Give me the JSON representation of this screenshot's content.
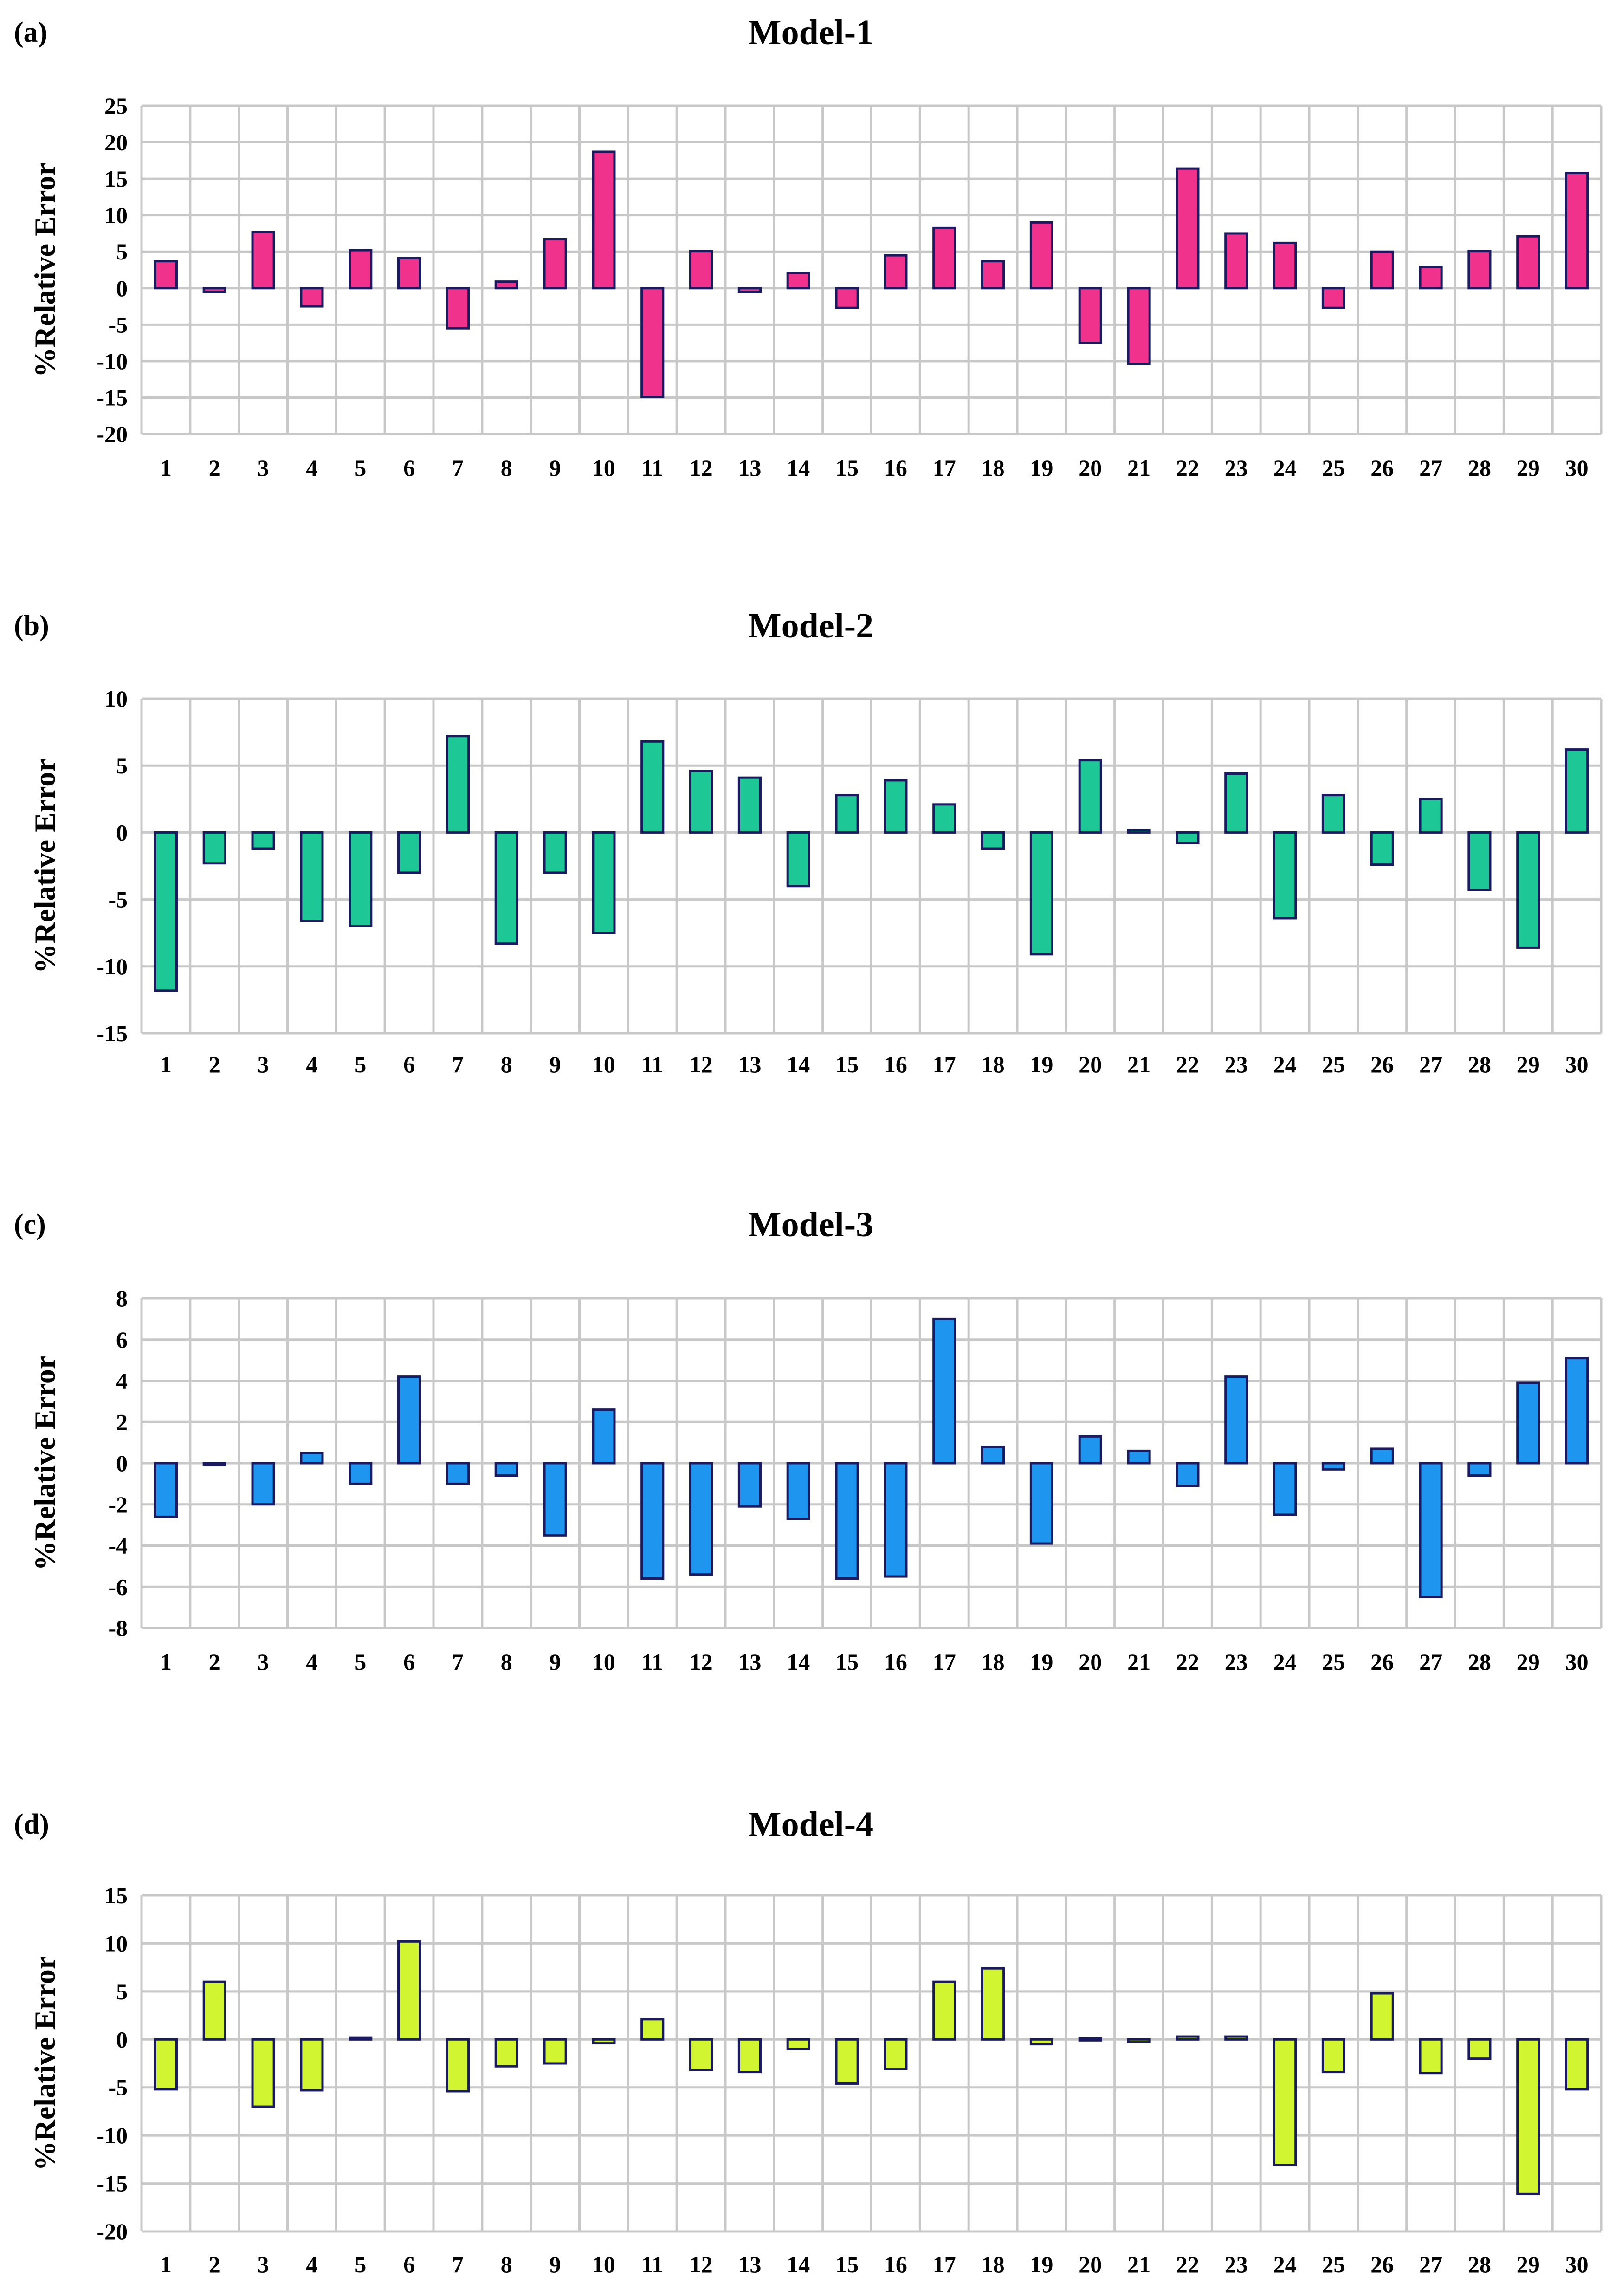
{
  "colors": {
    "grid": "#c8c8c8",
    "bar_stroke": "#1a1a5e",
    "text": "#000000",
    "background": "#ffffff"
  },
  "chart_data": [
    {
      "type": "bar",
      "panel_label": "(a)",
      "title": "Model-1",
      "xlabel": "",
      "ylabel": "%Relative Error",
      "ylim": [
        -20,
        25
      ],
      "yticks": [
        25,
        20,
        15,
        10,
        5,
        0,
        -5,
        -10,
        -15,
        -20
      ],
      "grid": true,
      "color": "#f0328c",
      "categories": [
        "1",
        "2",
        "3",
        "4",
        "5",
        "6",
        "7",
        "8",
        "9",
        "10",
        "11",
        "12",
        "13",
        "14",
        "15",
        "16",
        "17",
        "18",
        "19",
        "20",
        "21",
        "22",
        "23",
        "24",
        "25",
        "26",
        "27",
        "28",
        "29",
        "30"
      ],
      "values": [
        3.7,
        -0.5,
        7.7,
        -2.5,
        5.2,
        4.1,
        -5.5,
        0.9,
        6.7,
        18.7,
        -14.9,
        5.1,
        -0.5,
        2.1,
        -2.7,
        4.5,
        8.3,
        3.7,
        9.0,
        -7.5,
        -10.4,
        16.4,
        7.5,
        6.2,
        -2.7,
        5.0,
        2.9,
        5.1,
        7.1,
        15.8
      ]
    },
    {
      "type": "bar",
      "panel_label": "(b)",
      "title": "Model-2",
      "xlabel": "",
      "ylabel": "%Relative Error",
      "ylim": [
        -15,
        10
      ],
      "yticks": [
        10,
        5,
        0,
        -5,
        -10,
        -15
      ],
      "grid": true,
      "color": "#1ec896",
      "categories": [
        "1",
        "2",
        "3",
        "4",
        "5",
        "6",
        "7",
        "8",
        "9",
        "10",
        "11",
        "12",
        "13",
        "14",
        "15",
        "16",
        "17",
        "18",
        "19",
        "20",
        "21",
        "22",
        "23",
        "24",
        "25",
        "26",
        "27",
        "28",
        "29",
        "30"
      ],
      "values": [
        -11.8,
        -2.3,
        -1.2,
        -6.6,
        -7.0,
        -3.0,
        7.2,
        -8.3,
        -3.0,
        -7.5,
        6.8,
        4.6,
        4.1,
        -4.0,
        2.8,
        3.9,
        2.1,
        -1.2,
        -9.1,
        5.4,
        0.2,
        -0.8,
        4.4,
        -6.4,
        2.8,
        -2.4,
        2.5,
        -4.3,
        -8.6,
        6.2
      ]
    },
    {
      "type": "bar",
      "panel_label": "(c)",
      "title": "Model-3",
      "xlabel": "",
      "ylabel": "%Relative Error",
      "ylim": [
        -8,
        8
      ],
      "yticks": [
        8,
        6,
        4,
        2,
        0,
        -2,
        -4,
        -6,
        -8
      ],
      "grid": true,
      "color": "#1e96f0",
      "categories": [
        "1",
        "2",
        "3",
        "4",
        "5",
        "6",
        "7",
        "8",
        "9",
        "10",
        "11",
        "12",
        "13",
        "14",
        "15",
        "16",
        "17",
        "18",
        "19",
        "20",
        "21",
        "22",
        "23",
        "24",
        "25",
        "26",
        "27",
        "28",
        "29",
        "30"
      ],
      "values": [
        -2.6,
        -0.1,
        -2.0,
        0.5,
        -1.0,
        4.2,
        -1.0,
        -0.6,
        -3.5,
        2.6,
        -5.6,
        -5.4,
        -2.1,
        -2.7,
        -5.6,
        -5.5,
        7.0,
        0.8,
        -3.9,
        1.3,
        0.6,
        -1.1,
        4.2,
        -2.5,
        -0.3,
        0.7,
        -6.5,
        -0.6,
        3.9,
        5.1
      ]
    },
    {
      "type": "bar",
      "panel_label": "(d)",
      "title": "Model-4",
      "xlabel": "",
      "ylabel": "%Relative Error",
      "ylim": [
        -20,
        15
      ],
      "yticks": [
        15,
        10,
        5,
        0,
        -5,
        -10,
        -15,
        -20
      ],
      "grid": true,
      "color": "#d2f532",
      "categories": [
        "1",
        "2",
        "3",
        "4",
        "5",
        "6",
        "7",
        "8",
        "9",
        "10",
        "11",
        "12",
        "13",
        "14",
        "15",
        "16",
        "17",
        "18",
        "19",
        "20",
        "21",
        "22",
        "23",
        "24",
        "25",
        "26",
        "27",
        "28",
        "29",
        "30"
      ],
      "values": [
        -5.2,
        6.0,
        -7.0,
        -5.3,
        0.2,
        10.2,
        -5.4,
        -2.8,
        -2.5,
        -0.4,
        2.1,
        -3.2,
        -3.4,
        -1.0,
        -4.6,
        -3.1,
        6.0,
        7.4,
        -0.5,
        -0.1,
        -0.3,
        0.3,
        0.3,
        -13.1,
        -3.4,
        4.8,
        -3.5,
        -2.0,
        -16.1,
        -5.2
      ]
    }
  ]
}
